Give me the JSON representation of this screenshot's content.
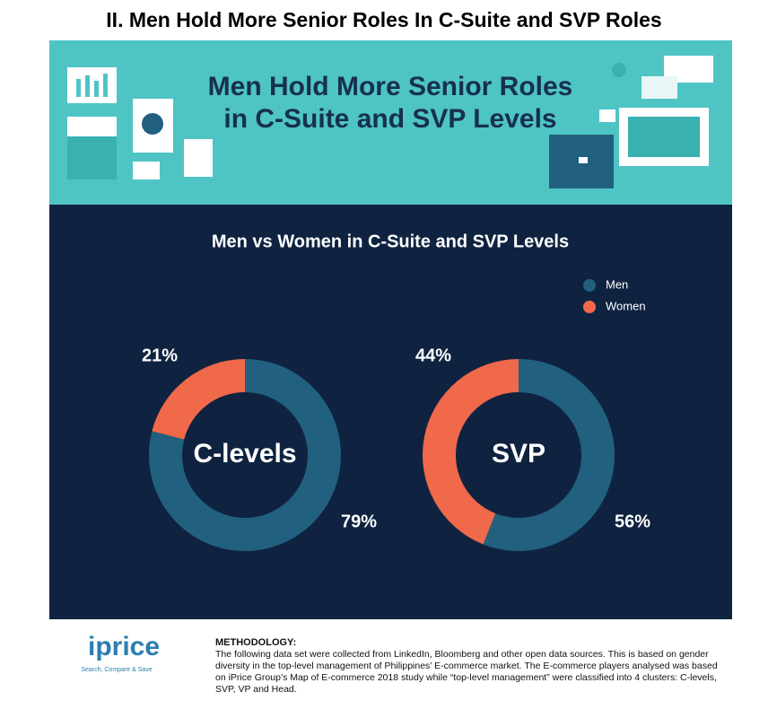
{
  "page_title": "II. Men Hold More Senior Roles In C-Suite and SVP Roles",
  "banner_title": [
    "Men Hold More Senior Roles",
    "in C-Suite and SVP Levels"
  ],
  "chart_data": {
    "type": "donut",
    "title": "Men vs Women in C-Suite and SVP Levels",
    "categories": [
      "C-levels",
      "SVP"
    ],
    "series": [
      {
        "name": "Men",
        "color": "#22607f",
        "values": [
          79,
          56
        ],
        "value_labels": [
          "79%",
          "56%"
        ]
      },
      {
        "name": "Women",
        "color": "#f0694a",
        "values": [
          21,
          44
        ],
        "value_labels": [
          "21%",
          "44%"
        ]
      }
    ]
  },
  "footer": {
    "logo": "iprice",
    "tagline": "Search, Compare & Save",
    "methodology_title": "METHODOLOGY:",
    "methodology_text": "The following data set were collected from LinkedIn, Bloomberg and other open data sources. This is based on gender diversity in the top-level management of Philippines’ E-commerce market. The E-commerce players analysed was based on iPrice Group’s Map of E-commerce 2018 study while “top-level management” were classified into 4 clusters: C-levels, SVP, VP and Head."
  }
}
